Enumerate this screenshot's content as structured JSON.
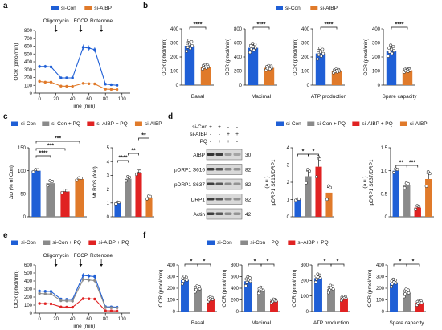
{
  "colors": {
    "si_con": "#1f5fd6",
    "si_aibp": "#e07a2a",
    "si_con_pq": "#8a8a8a",
    "si_aibp_pq": "#e02222",
    "blot_band": "#2b2b2b",
    "blot_bg": "#d9d9d9"
  },
  "panel_letters": [
    "a",
    "b",
    "c",
    "d",
    "e",
    "f"
  ],
  "chart_data": [
    {
      "panel": "a",
      "type": "line",
      "legend": [
        "si-Con",
        "si-AIBP"
      ],
      "xlabel": "Time (min)",
      "ylabel": "OCR (pmol/min)",
      "xlim": [
        -5,
        110
      ],
      "ylim": [
        0,
        800
      ],
      "xticks": [
        0,
        20,
        40,
        60,
        80,
        100
      ],
      "yticks": [
        0,
        100,
        200,
        300,
        400,
        500,
        600,
        700,
        800
      ],
      "annotations": [
        "Oligomycin",
        "FCCP",
        "Rotenone"
      ],
      "annotation_x": [
        20,
        50,
        75
      ],
      "x": [
        0,
        7,
        14,
        26,
        33,
        40,
        53,
        60,
        67,
        80,
        87,
        94
      ],
      "series": [
        {
          "name": "si-Con",
          "values": [
            340,
            340,
            335,
            195,
            195,
            195,
            585,
            575,
            555,
            115,
            108,
            100
          ]
        },
        {
          "name": "si-AIBP",
          "values": [
            150,
            140,
            140,
            90,
            88,
            87,
            125,
            120,
            118,
            50,
            48,
            46
          ]
        }
      ]
    },
    {
      "panel": "b",
      "type": "bar",
      "legend": [
        "si-Con",
        "si-AIBP"
      ],
      "ylabel": "OCR (pmol/min)",
      "subplots": [
        {
          "xlabel": "Basal",
          "ylim": [
            0,
            400
          ],
          "yticks": [
            0,
            100,
            200,
            300,
            400
          ],
          "values": [
            280,
            130
          ],
          "errors": [
            30,
            12
          ],
          "sig": "****"
        },
        {
          "xlabel": "Maximal",
          "ylim": [
            0,
            800
          ],
          "yticks": [
            0,
            200,
            400,
            600,
            800
          ],
          "values": [
            530,
            245
          ],
          "errors": [
            50,
            25
          ],
          "sig": "****"
        },
        {
          "xlabel": "ATP production",
          "ylim": [
            0,
            400
          ],
          "yticks": [
            0,
            100,
            200,
            300,
            400
          ],
          "values": [
            225,
            100
          ],
          "errors": [
            30,
            10
          ],
          "sig": "****"
        },
        {
          "xlabel": "Spare capacity",
          "ylim": [
            0,
            400
          ],
          "yticks": [
            0,
            100,
            200,
            300,
            400
          ],
          "values": [
            245,
            105
          ],
          "errors": [
            30,
            10
          ],
          "sig": "****"
        }
      ]
    },
    {
      "panel": "c",
      "type": "bar",
      "legend": [
        "si-Con",
        "si-Con + PQ",
        "si-AIBP + PQ",
        "si-AIBP"
      ],
      "subplots": [
        {
          "ylabel": "Δψ (% of Con)",
          "ylim": [
            0,
            150
          ],
          "yticks": [
            0,
            50,
            100,
            150
          ],
          "values": [
            100,
            73,
            55,
            82
          ],
          "errors": [
            2,
            4,
            2,
            2
          ],
          "sig_labels": [
            "****",
            "***",
            "***"
          ],
          "sig_pairs": [
            [
              0,
              1
            ],
            [
              0,
              2
            ],
            [
              0,
              3
            ]
          ]
        },
        {
          "ylabel": "Mt ROS (fold)",
          "ylim": [
            0,
            5
          ],
          "yticks": [
            0,
            1,
            2,
            3,
            4,
            5
          ],
          "values": [
            1.0,
            2.75,
            3.2,
            1.4
          ],
          "errors": [
            0.05,
            0.12,
            0.1,
            0.08
          ],
          "sig_labels": [
            "****",
            "**",
            "**"
          ],
          "sig_pairs": [
            [
              0,
              1
            ],
            [
              1,
              2
            ],
            [
              2,
              3
            ]
          ]
        }
      ]
    },
    {
      "panel": "d-blot",
      "type": "table",
      "row_labels": [
        "si-Con",
        "si-AIBP",
        "PQ"
      ],
      "lane_marks": [
        [
          "+",
          "+",
          "-",
          "-"
        ],
        [
          "-",
          "-",
          "+",
          "+"
        ],
        [
          "-",
          "+",
          "+",
          "-"
        ]
      ],
      "bands": [
        "AIBP",
        "pDRP1 S616",
        "pDRP1 S637",
        "DRP1",
        "Actin"
      ],
      "kda": [
        "30",
        "82",
        "82",
        "82",
        "42"
      ]
    },
    {
      "panel": "d",
      "type": "bar",
      "legend": [
        "si-Con",
        "si-Con + PQ",
        "si-AIBP + PQ",
        "si-AIBP"
      ],
      "ylabel_unit": "(a.u.)",
      "subplots": [
        {
          "ylabel": "pDRP1 S616/DRP1",
          "ylim": [
            0,
            4
          ],
          "yticks": [
            0,
            1,
            2,
            3,
            4
          ],
          "values": [
            1.0,
            2.35,
            2.9,
            1.4
          ],
          "errors": [
            0.03,
            0.3,
            0.45,
            0.3
          ],
          "sig_labels": [
            "*",
            "*"
          ],
          "sig_pairs": [
            [
              0,
              1
            ],
            [
              1,
              2
            ]
          ]
        },
        {
          "ylabel": "pDRP1 S637/DRP1",
          "ylim": [
            0,
            1.5
          ],
          "yticks": [
            0,
            0.5,
            1.0,
            1.5
          ],
          "values": [
            1.0,
            0.68,
            0.2,
            0.82
          ],
          "errors": [
            0.03,
            0.04,
            0.03,
            0.12
          ],
          "sig_labels": [
            "**",
            "***"
          ],
          "sig_pairs": [
            [
              0,
              1
            ],
            [
              1,
              2
            ]
          ]
        }
      ]
    },
    {
      "panel": "e",
      "type": "line",
      "legend": [
        "si-Con",
        "si-Con + PQ",
        "si-AIBP + PQ"
      ],
      "xlabel": "Time (min)",
      "ylabel": "OCR (pmol/min)",
      "xlim": [
        -5,
        110
      ],
      "ylim": [
        0,
        600
      ],
      "xticks": [
        0,
        20,
        40,
        60,
        80,
        100
      ],
      "yticks": [
        0,
        100,
        200,
        300,
        400,
        500,
        600
      ],
      "annotations": [
        "Oligomycin",
        "FCCP",
        "Rotenone"
      ],
      "annotation_x": [
        20,
        50,
        75
      ],
      "x": [
        0,
        7,
        14,
        26,
        33,
        40,
        53,
        60,
        67,
        80,
        87,
        94
      ],
      "series": [
        {
          "name": "si-Con",
          "values": [
            275,
            272,
            270,
            175,
            172,
            170,
            470,
            462,
            455,
            80,
            78,
            75
          ]
        },
        {
          "name": "si-Con + PQ",
          "values": [
            245,
            240,
            238,
            155,
            152,
            150,
            420,
            412,
            405,
            70,
            68,
            66
          ]
        },
        {
          "name": "si-AIBP + PQ",
          "values": [
            120,
            118,
            115,
            78,
            76,
            74,
            180,
            178,
            175,
            30,
            29,
            28
          ]
        }
      ]
    },
    {
      "panel": "f",
      "type": "bar",
      "legend": [
        "si-Con",
        "si-Con + PQ",
        "si-AIBP + PQ"
      ],
      "ylabel": "OCR (pmol/min)",
      "subplots": [
        {
          "xlabel": "Basal",
          "ylim": [
            0,
            400
          ],
          "yticks": [
            0,
            100,
            200,
            300,
            400
          ],
          "values": [
            270,
            195,
            105
          ],
          "errors": [
            25,
            20,
            15
          ],
          "sig": [
            "*",
            "*"
          ]
        },
        {
          "xlabel": "Maximal",
          "ylim": [
            0,
            800
          ],
          "yticks": [
            0,
            200,
            400,
            600,
            800
          ],
          "values": [
            520,
            365,
            180
          ],
          "errors": [
            60,
            40,
            25
          ],
          "sig": [
            "*",
            "*"
          ]
        },
        {
          "xlabel": "ATP production",
          "ylim": [
            0,
            300
          ],
          "yticks": [
            0,
            100,
            200,
            300
          ],
          "values": [
            215,
            145,
            85
          ],
          "errors": [
            20,
            18,
            10
          ],
          "sig": [
            "*",
            "*"
          ]
        },
        {
          "xlabel": "Spare capacity",
          "ylim": [
            0,
            400
          ],
          "yticks": [
            0,
            100,
            200,
            300,
            400
          ],
          "values": [
            245,
            160,
            75
          ],
          "errors": [
            25,
            25,
            15
          ],
          "sig": [
            "*",
            "*"
          ]
        }
      ]
    }
  ]
}
